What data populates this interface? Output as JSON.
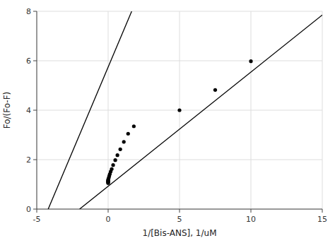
{
  "chart_data": {
    "type": "scatter",
    "xlabel": "1/[Bis-ANS], 1/uM",
    "ylabel": "Fo/(Fo-F)",
    "xlim": [
      -5,
      15
    ],
    "ylim": [
      0,
      8
    ],
    "xticks": [
      -5,
      0,
      5,
      10,
      15
    ],
    "yticks": [
      0,
      2,
      4,
      6,
      8
    ],
    "grid": true,
    "series": [
      {
        "type": "line",
        "color": "#000000",
        "x": [
          -4.2,
          1.65
        ],
        "values": [
          0.0,
          8.0
        ]
      },
      {
        "type": "line",
        "color": "#000000",
        "x": [
          -2.0,
          15.0
        ],
        "values": [
          0.0,
          7.85
        ]
      },
      {
        "type": "scatter",
        "color": "#000000",
        "marker": "circle",
        "x": [
          0.0,
          0.0,
          0.0,
          0.0,
          0.0,
          0.0,
          0.0,
          0.02,
          0.05,
          0.08,
          0.12,
          0.18,
          0.25,
          0.35,
          0.5,
          0.65,
          0.85,
          1.1,
          1.4,
          1.8,
          5.0,
          7.5,
          10.0
        ],
        "values": [
          1.05,
          1.08,
          1.1,
          1.12,
          1.14,
          1.15,
          1.18,
          1.22,
          1.28,
          1.35,
          1.42,
          1.52,
          1.62,
          1.78,
          1.98,
          2.18,
          2.42,
          2.72,
          3.05,
          3.35,
          4.0,
          4.82,
          5.98
        ]
      }
    ]
  }
}
